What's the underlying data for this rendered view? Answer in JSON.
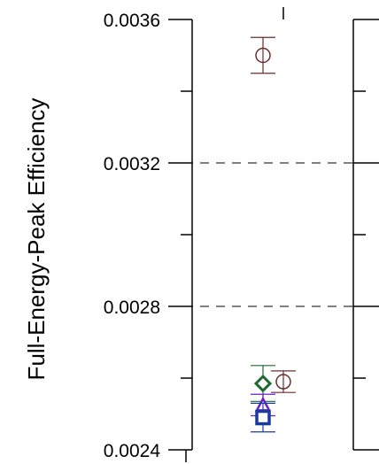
{
  "chart_data": {
    "type": "scatter",
    "title": "",
    "xlabel": "",
    "ylabel": "Full-Energy-Peak Efficiency",
    "ylim": [
      0.0024,
      0.0036
    ],
    "yticks": [
      "0.0024",
      "0.0028",
      "0.0032",
      "0.0036"
    ],
    "grid": "dashed horizontal lines at 0.0028 and 0.0032",
    "series": [
      {
        "marker": "circle",
        "color": "#6a2c2c",
        "points": [
          {
            "x": 0,
            "y": 0.0035,
            "err": 5e-05
          },
          {
            "x": 1,
            "y": 0.00259,
            "err": 3e-05
          }
        ]
      },
      {
        "marker": "diamond",
        "color": "#1e6b2e",
        "points": [
          {
            "x": 0,
            "y": 0.002585,
            "err": 5e-05
          }
        ]
      },
      {
        "marker": "triangle",
        "color": "#6b1fc9",
        "points": [
          {
            "x": 0,
            "y": 0.002525,
            "err": 3e-05
          }
        ]
      },
      {
        "marker": "square",
        "color": "#1a3a9c",
        "points": [
          {
            "x": 0,
            "y": 0.00249,
            "err": 4e-05
          }
        ]
      }
    ]
  }
}
